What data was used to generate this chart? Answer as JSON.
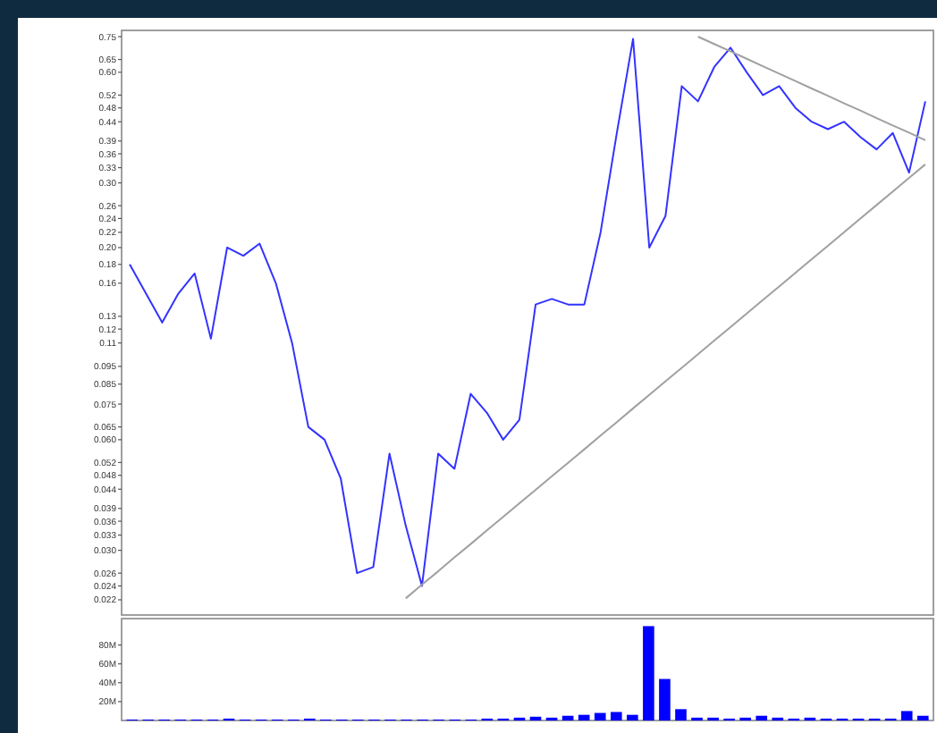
{
  "chart_data": [
    {
      "type": "line",
      "log": "y",
      "marker": "none",
      "line_style": "solid",
      "grid": false,
      "tick_labels": "y",
      "ylim": [
        0.02,
        0.78
      ],
      "yticks": [
        0.75,
        0.65,
        {
          "value": 0.6,
          "label": "0.60"
        },
        0.52,
        0.48,
        0.44,
        0.39,
        0.36,
        0.33,
        {
          "value": 0.3,
          "label": "0.30"
        },
        0.26,
        0.24,
        0.22,
        {
          "value": 0.2,
          "label": "0.20"
        },
        0.18,
        0.16,
        0.13,
        0.12,
        0.11,
        0.095,
        0.085,
        0.075,
        0.065,
        {
          "value": 0.06,
          "label": "0.060"
        },
        0.052,
        0.048,
        0.044,
        0.039,
        0.036,
        0.033,
        {
          "value": 0.03,
          "label": "0.030"
        },
        0.026,
        0.024,
        0.022
      ],
      "categories": [
        null,
        null,
        null,
        null,
        null,
        null,
        null,
        null,
        null,
        null,
        null,
        null,
        null,
        null,
        null,
        null,
        null,
        null,
        null,
        null,
        null,
        null,
        null,
        null,
        null,
        null,
        null,
        null,
        null,
        null,
        null,
        null,
        null,
        null,
        null,
        null,
        null,
        null,
        null,
        null,
        null,
        null,
        null,
        null,
        null,
        null,
        null,
        null,
        null,
        null
      ],
      "series": [
        {
          "color": "#3333ff",
          "values": [
            0.18,
            0.15,
            0.125,
            0.15,
            0.17,
            0.113,
            0.2,
            0.19,
            0.205,
            0.16,
            0.11,
            0.065,
            0.06,
            0.047,
            0.026,
            0.027,
            0.055,
            0.035,
            0.024,
            0.055,
            0.05,
            0.08,
            0.071,
            0.06,
            0.068,
            0.14,
            0.145,
            0.14,
            0.14,
            0.22,
            0.41,
            0.74,
            0.2,
            0.244,
            0.55,
            0.5,
            0.62,
            0.7,
            0.6,
            0.52,
            0.55,
            0.48,
            0.44,
            0.42,
            0.44,
            0.4,
            0.37,
            0.41,
            0.32,
            0.5
          ]
        },
        {
          "type": "line",
          "color": "#a0a0a0",
          "values": [
            null,
            null,
            null,
            null,
            null,
            null,
            null,
            null,
            null,
            null,
            null,
            null,
            null,
            null,
            null,
            null,
            null,
            0.0222,
            0.0242,
            0.0263,
            0.0287,
            0.0312,
            0.034,
            0.037,
            0.0403,
            0.0438,
            0.0477,
            0.0519,
            0.0565,
            0.0616,
            0.067,
            0.073,
            0.0795,
            0.0865,
            0.0941,
            0.1025,
            0.1116,
            0.1215,
            0.1323,
            0.144,
            0.1568,
            0.1707,
            0.1858,
            0.2023,
            0.2203,
            0.2399,
            0.2611,
            0.2843,
            0.3095,
            0.3369
          ]
        },
        {
          "type": "line",
          "color": "#a0a0a0",
          "values": [
            null,
            null,
            null,
            null,
            null,
            null,
            null,
            null,
            null,
            null,
            null,
            null,
            null,
            null,
            null,
            null,
            null,
            null,
            null,
            null,
            null,
            null,
            null,
            null,
            null,
            null,
            null,
            null,
            null,
            null,
            null,
            null,
            null,
            null,
            null,
            0.75,
            0.716,
            0.684,
            0.653,
            0.623,
            0.595,
            0.568,
            0.542,
            0.518,
            0.494,
            0.472,
            0.45,
            0.43,
            0.411,
            0.392
          ]
        }
      ]
    },
    {
      "type": "bar",
      "tick_labels": "y",
      "ylim": [
        0,
        108
      ],
      "yticks": [
        {
          "value": 20,
          "label": "20M"
        },
        {
          "value": 40,
          "label": "40M"
        },
        {
          "value": 60,
          "label": "60M"
        },
        {
          "value": 80,
          "label": "80M"
        }
      ],
      "color": "#0000ff",
      "categories": [
        null,
        null,
        null,
        null,
        null,
        null,
        null,
        null,
        null,
        null,
        null,
        null,
        null,
        null,
        null,
        null,
        null,
        null,
        null,
        null,
        null,
        null,
        null,
        null,
        null,
        null,
        null,
        null,
        null,
        null,
        null,
        null,
        null,
        null,
        null,
        null,
        null,
        null,
        null,
        null,
        null,
        null,
        null,
        null,
        null,
        null,
        null,
        null,
        null,
        null
      ],
      "values": [
        1,
        1,
        1,
        1,
        1,
        1,
        2,
        1,
        1,
        1,
        1,
        2,
        1,
        1,
        1,
        1,
        1,
        1,
        1,
        1,
        1,
        1,
        2,
        2,
        3,
        4,
        3,
        5,
        6,
        8,
        9,
        6,
        100,
        44,
        12,
        3,
        3,
        2,
        3,
        5,
        3,
        2,
        3,
        2,
        2,
        2,
        2,
        2,
        10,
        5
      ]
    }
  ]
}
